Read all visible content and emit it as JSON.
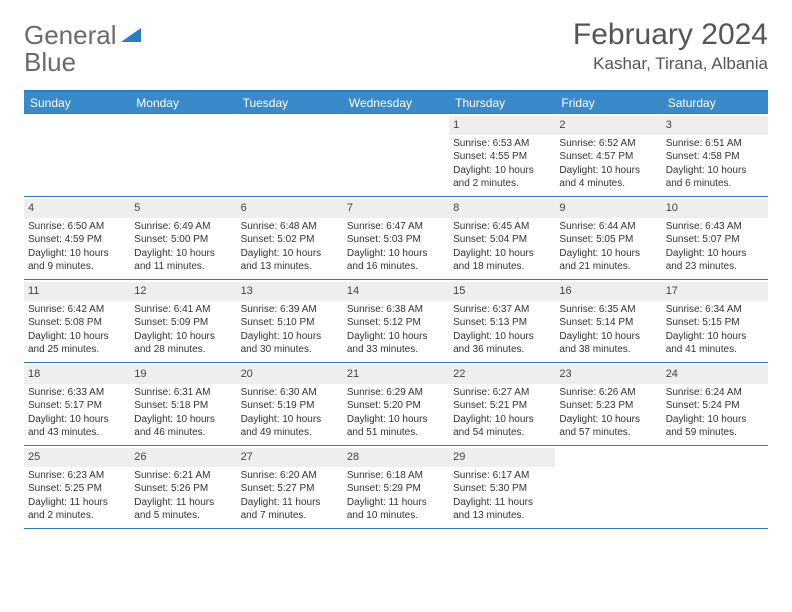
{
  "logo": {
    "word1": "General",
    "word2": "Blue"
  },
  "title": "February 2024",
  "location": "Kashar, Tirana, Albania",
  "colors": {
    "header_bg": "#3a8ac9",
    "border": "#2f7bbf",
    "date_bg": "#eeeeee",
    "text": "#333333"
  },
  "day_headers": [
    "Sunday",
    "Monday",
    "Tuesday",
    "Wednesday",
    "Thursday",
    "Friday",
    "Saturday"
  ],
  "weeks": [
    [
      null,
      null,
      null,
      null,
      {
        "d": "1",
        "sr": "Sunrise: 6:53 AM",
        "ss": "Sunset: 4:55 PM",
        "dl1": "Daylight: 10 hours",
        "dl2": "and 2 minutes."
      },
      {
        "d": "2",
        "sr": "Sunrise: 6:52 AM",
        "ss": "Sunset: 4:57 PM",
        "dl1": "Daylight: 10 hours",
        "dl2": "and 4 minutes."
      },
      {
        "d": "3",
        "sr": "Sunrise: 6:51 AM",
        "ss": "Sunset: 4:58 PM",
        "dl1": "Daylight: 10 hours",
        "dl2": "and 6 minutes."
      }
    ],
    [
      {
        "d": "4",
        "sr": "Sunrise: 6:50 AM",
        "ss": "Sunset: 4:59 PM",
        "dl1": "Daylight: 10 hours",
        "dl2": "and 9 minutes."
      },
      {
        "d": "5",
        "sr": "Sunrise: 6:49 AM",
        "ss": "Sunset: 5:00 PM",
        "dl1": "Daylight: 10 hours",
        "dl2": "and 11 minutes."
      },
      {
        "d": "6",
        "sr": "Sunrise: 6:48 AM",
        "ss": "Sunset: 5:02 PM",
        "dl1": "Daylight: 10 hours",
        "dl2": "and 13 minutes."
      },
      {
        "d": "7",
        "sr": "Sunrise: 6:47 AM",
        "ss": "Sunset: 5:03 PM",
        "dl1": "Daylight: 10 hours",
        "dl2": "and 16 minutes."
      },
      {
        "d": "8",
        "sr": "Sunrise: 6:45 AM",
        "ss": "Sunset: 5:04 PM",
        "dl1": "Daylight: 10 hours",
        "dl2": "and 18 minutes."
      },
      {
        "d": "9",
        "sr": "Sunrise: 6:44 AM",
        "ss": "Sunset: 5:05 PM",
        "dl1": "Daylight: 10 hours",
        "dl2": "and 21 minutes."
      },
      {
        "d": "10",
        "sr": "Sunrise: 6:43 AM",
        "ss": "Sunset: 5:07 PM",
        "dl1": "Daylight: 10 hours",
        "dl2": "and 23 minutes."
      }
    ],
    [
      {
        "d": "11",
        "sr": "Sunrise: 6:42 AM",
        "ss": "Sunset: 5:08 PM",
        "dl1": "Daylight: 10 hours",
        "dl2": "and 25 minutes."
      },
      {
        "d": "12",
        "sr": "Sunrise: 6:41 AM",
        "ss": "Sunset: 5:09 PM",
        "dl1": "Daylight: 10 hours",
        "dl2": "and 28 minutes."
      },
      {
        "d": "13",
        "sr": "Sunrise: 6:39 AM",
        "ss": "Sunset: 5:10 PM",
        "dl1": "Daylight: 10 hours",
        "dl2": "and 30 minutes."
      },
      {
        "d": "14",
        "sr": "Sunrise: 6:38 AM",
        "ss": "Sunset: 5:12 PM",
        "dl1": "Daylight: 10 hours",
        "dl2": "and 33 minutes."
      },
      {
        "d": "15",
        "sr": "Sunrise: 6:37 AM",
        "ss": "Sunset: 5:13 PM",
        "dl1": "Daylight: 10 hours",
        "dl2": "and 36 minutes."
      },
      {
        "d": "16",
        "sr": "Sunrise: 6:35 AM",
        "ss": "Sunset: 5:14 PM",
        "dl1": "Daylight: 10 hours",
        "dl2": "and 38 minutes."
      },
      {
        "d": "17",
        "sr": "Sunrise: 6:34 AM",
        "ss": "Sunset: 5:15 PM",
        "dl1": "Daylight: 10 hours",
        "dl2": "and 41 minutes."
      }
    ],
    [
      {
        "d": "18",
        "sr": "Sunrise: 6:33 AM",
        "ss": "Sunset: 5:17 PM",
        "dl1": "Daylight: 10 hours",
        "dl2": "and 43 minutes."
      },
      {
        "d": "19",
        "sr": "Sunrise: 6:31 AM",
        "ss": "Sunset: 5:18 PM",
        "dl1": "Daylight: 10 hours",
        "dl2": "and 46 minutes."
      },
      {
        "d": "20",
        "sr": "Sunrise: 6:30 AM",
        "ss": "Sunset: 5:19 PM",
        "dl1": "Daylight: 10 hours",
        "dl2": "and 49 minutes."
      },
      {
        "d": "21",
        "sr": "Sunrise: 6:29 AM",
        "ss": "Sunset: 5:20 PM",
        "dl1": "Daylight: 10 hours",
        "dl2": "and 51 minutes."
      },
      {
        "d": "22",
        "sr": "Sunrise: 6:27 AM",
        "ss": "Sunset: 5:21 PM",
        "dl1": "Daylight: 10 hours",
        "dl2": "and 54 minutes."
      },
      {
        "d": "23",
        "sr": "Sunrise: 6:26 AM",
        "ss": "Sunset: 5:23 PM",
        "dl1": "Daylight: 10 hours",
        "dl2": "and 57 minutes."
      },
      {
        "d": "24",
        "sr": "Sunrise: 6:24 AM",
        "ss": "Sunset: 5:24 PM",
        "dl1": "Daylight: 10 hours",
        "dl2": "and 59 minutes."
      }
    ],
    [
      {
        "d": "25",
        "sr": "Sunrise: 6:23 AM",
        "ss": "Sunset: 5:25 PM",
        "dl1": "Daylight: 11 hours",
        "dl2": "and 2 minutes."
      },
      {
        "d": "26",
        "sr": "Sunrise: 6:21 AM",
        "ss": "Sunset: 5:26 PM",
        "dl1": "Daylight: 11 hours",
        "dl2": "and 5 minutes."
      },
      {
        "d": "27",
        "sr": "Sunrise: 6:20 AM",
        "ss": "Sunset: 5:27 PM",
        "dl1": "Daylight: 11 hours",
        "dl2": "and 7 minutes."
      },
      {
        "d": "28",
        "sr": "Sunrise: 6:18 AM",
        "ss": "Sunset: 5:29 PM",
        "dl1": "Daylight: 11 hours",
        "dl2": "and 10 minutes."
      },
      {
        "d": "29",
        "sr": "Sunrise: 6:17 AM",
        "ss": "Sunset: 5:30 PM",
        "dl1": "Daylight: 11 hours",
        "dl2": "and 13 minutes."
      },
      null,
      null
    ]
  ]
}
